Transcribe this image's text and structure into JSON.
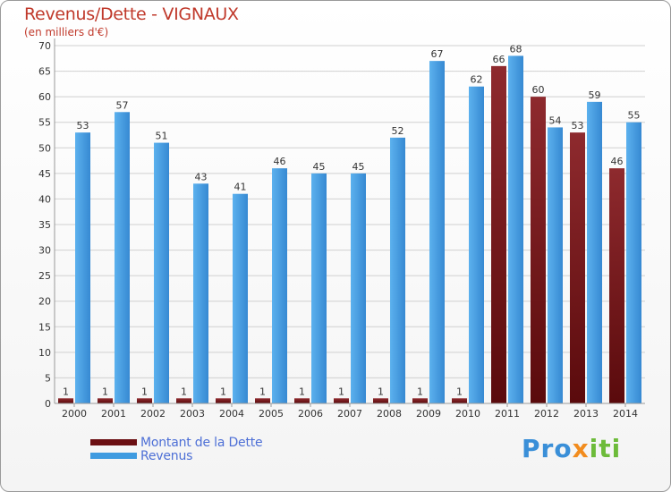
{
  "chart_data": {
    "type": "bar",
    "title": "Revenus/Dette - VIGNAUX",
    "subtitle": "(en milliers d'€)",
    "categories": [
      "2000",
      "2001",
      "2002",
      "2003",
      "2004",
      "2005",
      "2006",
      "2007",
      "2008",
      "2009",
      "2010",
      "2011",
      "2012",
      "2013",
      "2014"
    ],
    "series": [
      {
        "name": "Montant de la Dette",
        "color": "#6b0f12",
        "values": [
          1,
          1,
          1,
          1,
          1,
          1,
          1,
          1,
          1,
          1,
          1,
          66,
          60,
          53,
          46
        ]
      },
      {
        "name": "Revenus",
        "color": "#3f9be0",
        "values": [
          53,
          57,
          51,
          43,
          41,
          46,
          45,
          45,
          52,
          67,
          62,
          68,
          54,
          59,
          55
        ]
      }
    ],
    "ylim": [
      0,
      70
    ],
    "yticks": [
      0,
      5,
      10,
      15,
      20,
      25,
      30,
      35,
      40,
      45,
      50,
      55,
      60,
      65,
      70
    ],
    "grid": true,
    "legend_position": "bottom-left"
  },
  "logo": {
    "part1": "Pro",
    "part2": "x",
    "part3": "iti"
  }
}
